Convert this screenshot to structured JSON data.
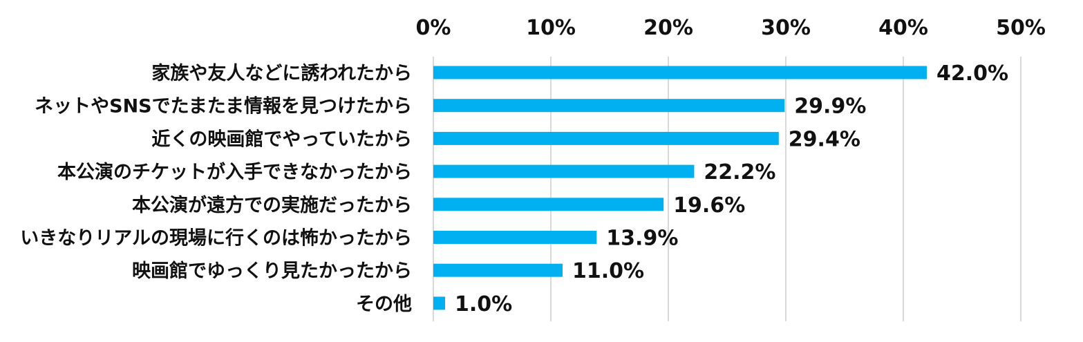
{
  "chart_data": {
    "type": "bar",
    "orientation": "horizontal",
    "categories": [
      "家族や友人などに誘われたから",
      "ネットやSNSでたまたま情報を見つけたから",
      "近くの映画館でやっていたから",
      "本公演のチケットが入手できなかったから",
      "本公演が遠方での実施だったから",
      "いきなりリアルの現場に行くのは怖かったから",
      "映画館でゆっくり見たかったから",
      "その他"
    ],
    "values": [
      42.0,
      29.9,
      29.4,
      22.2,
      19.6,
      13.9,
      11.0,
      1.0
    ],
    "value_labels": [
      "42.0%",
      "29.9%",
      "29.4%",
      "22.2%",
      "19.6%",
      "13.9%",
      "11.0%",
      "1.0%"
    ],
    "xlim": [
      0,
      50
    ],
    "x_ticks": [
      0,
      10,
      20,
      30,
      40,
      50
    ],
    "x_tick_labels": [
      "0%",
      "10%",
      "20%",
      "30%",
      "40%",
      "50%"
    ],
    "axis_position": "top",
    "grid": true,
    "bar_color": "#00b0f0",
    "grid_color": "#d9d9d9",
    "title": "",
    "xlabel": "",
    "ylabel": ""
  }
}
